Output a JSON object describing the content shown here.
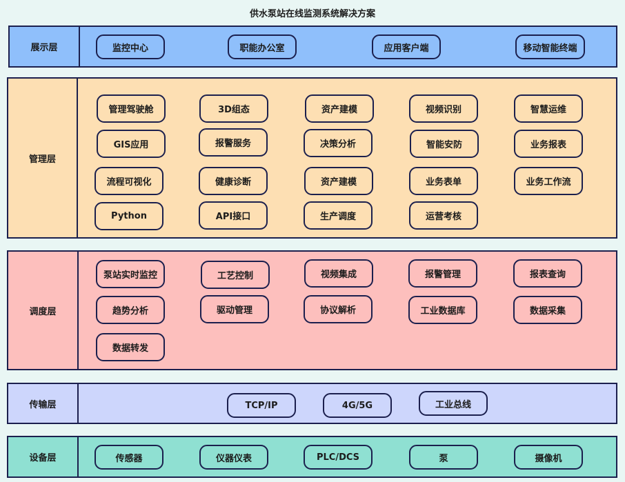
{
  "title": "供水泵站在线监测系统解决方案",
  "colors": {
    "background": "#e9f6f4",
    "border": "#1b1f4d",
    "display": "#8fbffb",
    "management": "#fddfb3",
    "scheduling": "#fdbfbd",
    "transport": "#cdd6fc",
    "device": "#8fe0d2"
  },
  "layers": [
    {
      "id": "display",
      "label": "展示层",
      "items": [
        "监控中心",
        "职能办公室",
        "应用客户端",
        "移动智能终端"
      ]
    },
    {
      "id": "management",
      "label": "管理层",
      "items": [
        "管理驾驶舱",
        "3D组态",
        "资产建模",
        "视频识别",
        "智慧运维",
        "GIS应用",
        "报警服务",
        "决策分析",
        "智能安防",
        "业务报表",
        "流程可视化",
        "健康诊断",
        "资产建模",
        "业务表单",
        "业务工作流",
        "Python",
        "API接口",
        "生产调度",
        "运营考核"
      ]
    },
    {
      "id": "scheduling",
      "label": "调度层",
      "items": [
        "泵站实时监控",
        "工艺控制",
        "视频集成",
        "报警管理",
        "报表查询",
        "趋势分析",
        "驱动管理",
        "协议解析",
        "工业数据库",
        "数据采集",
        "数据转发"
      ]
    },
    {
      "id": "transport",
      "label": "传输层",
      "items": [
        "TCP/IP",
        "4G/5G",
        "工业总线"
      ]
    },
    {
      "id": "device",
      "label": "设备层",
      "items": [
        "传感器",
        "仪器仪表",
        "PLC/DCS",
        "泵",
        "摄像机"
      ]
    }
  ]
}
